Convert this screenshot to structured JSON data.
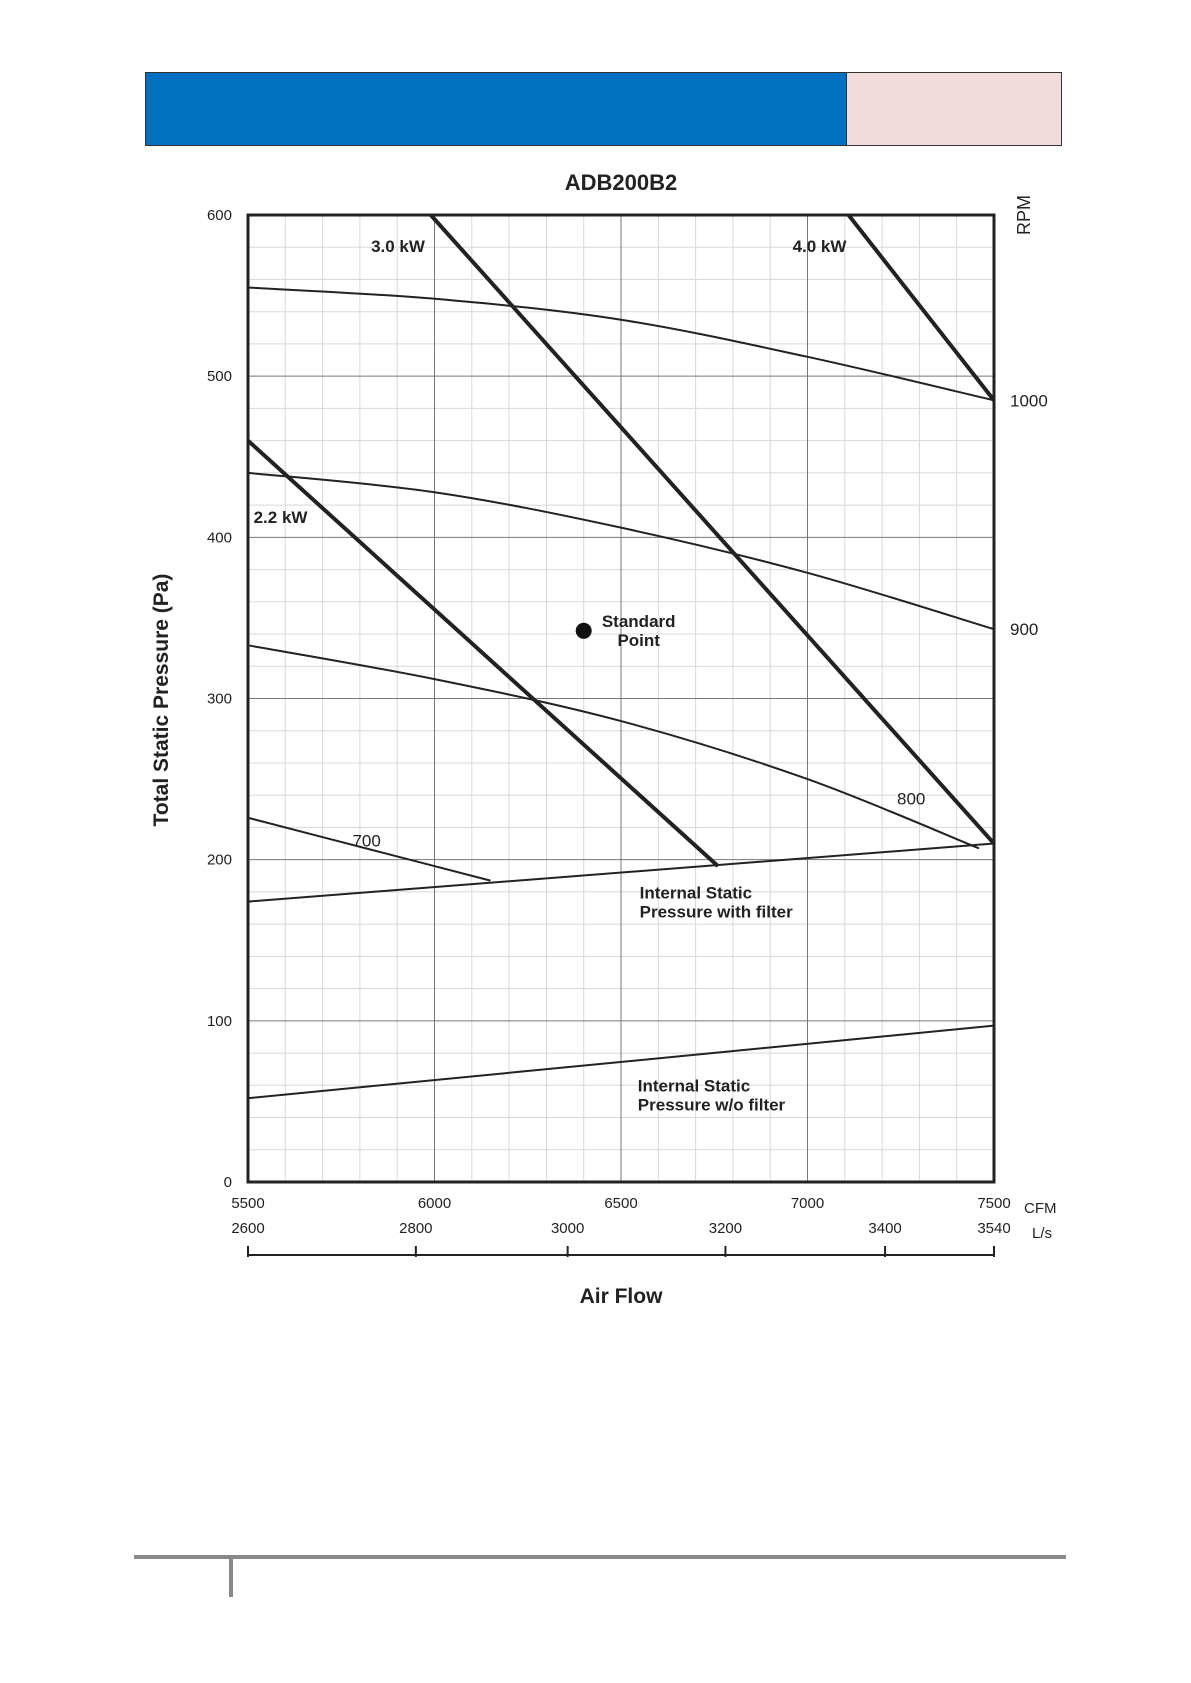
{
  "header": {
    "blue_color": "#0070c0",
    "pink_color": "#f2dcdb"
  },
  "chart_data": {
    "type": "line",
    "title": "ADB200B2",
    "xlabel": "Air Flow",
    "ylabel": "Total Static Pressure (Pa)",
    "right_axis_label": "RPM",
    "xlim": [
      5500,
      7500
    ],
    "ylim": [
      0,
      600
    ],
    "x_unit_primary": "CFM",
    "x_unit_secondary": "L/s",
    "x_ticks_primary": [
      {
        "value": 5500,
        "label": "5500"
      },
      {
        "value": 6000,
        "label": "6000"
      },
      {
        "value": 6500,
        "label": "6500"
      },
      {
        "value": 7000,
        "label": "7000"
      },
      {
        "value": 7500,
        "label": "7500"
      }
    ],
    "x_ticks_secondary": [
      {
        "cfm": 5500,
        "label": "2600"
      },
      {
        "cfm": 5950,
        "label": "2800"
      },
      {
        "cfm": 6357,
        "label": "3000"
      },
      {
        "cfm": 6780,
        "label": "3200"
      },
      {
        "cfm": 7208,
        "label": "3400"
      },
      {
        "cfm": 7500,
        "label": "3540"
      }
    ],
    "y_ticks": [
      {
        "value": 0,
        "label": "0"
      },
      {
        "value": 100,
        "label": "100"
      },
      {
        "value": 200,
        "label": "200"
      },
      {
        "value": 300,
        "label": "300"
      },
      {
        "value": 400,
        "label": "400"
      },
      {
        "value": 500,
        "label": "500"
      },
      {
        "value": 600,
        "label": "600"
      }
    ],
    "rpm_curves": [
      {
        "name": "1000",
        "x": [
          5500,
          6000,
          6500,
          7000,
          7500
        ],
        "y": [
          555,
          548,
          535,
          512,
          485
        ],
        "label_x": 7500,
        "label_y": 485
      },
      {
        "name": "900",
        "x": [
          5500,
          6000,
          6500,
          7000,
          7500
        ],
        "y": [
          440,
          428,
          406,
          378,
          343
        ],
        "label_x": 7500,
        "label_y": 343
      },
      {
        "name": "800",
        "x": [
          5500,
          6000,
          6500,
          7000,
          7460
        ],
        "y": [
          333,
          312,
          286,
          250,
          207
        ],
        "label_x": 7240,
        "label_y": 238
      },
      {
        "name": "700",
        "x": [
          5500,
          5850,
          6150
        ],
        "y": [
          226,
          205,
          187
        ],
        "label_x": 5780,
        "label_y": 212
      }
    ],
    "power_lines": [
      {
        "name": "2.2 kW",
        "x": [
          5500,
          6760
        ],
        "y": [
          460,
          196
        ],
        "label_x": 5515,
        "label_y": 412
      },
      {
        "name": "3.0 kW",
        "x": [
          5990,
          7500
        ],
        "y": [
          600,
          210
        ],
        "label_x": 5830,
        "label_y": 580
      },
      {
        "name": "4.0 kW",
        "x": [
          7110,
          7500
        ],
        "y": [
          600,
          485
        ],
        "label_x": 6960,
        "label_y": 580
      }
    ],
    "internal_static": [
      {
        "name": "Internal Static Pressure with filter",
        "label_lines": [
          "Internal Static",
          "Pressure with filter"
        ],
        "x": [
          5500,
          7500
        ],
        "y": [
          174,
          210
        ],
        "label_x": 6550,
        "label_y": 176
      },
      {
        "name": "Internal Static Pressure w/o filter",
        "label_lines": [
          "Internal Static",
          "Pressure w/o filter"
        ],
        "x": [
          5500,
          7500
        ],
        "y": [
          52,
          97
        ],
        "label_x": 6545,
        "label_y": 56
      }
    ],
    "standard_point": {
      "name": "Standard Point",
      "label_lines": [
        "Standard",
        "Point"
      ],
      "x": 6400,
      "y": 342
    }
  }
}
